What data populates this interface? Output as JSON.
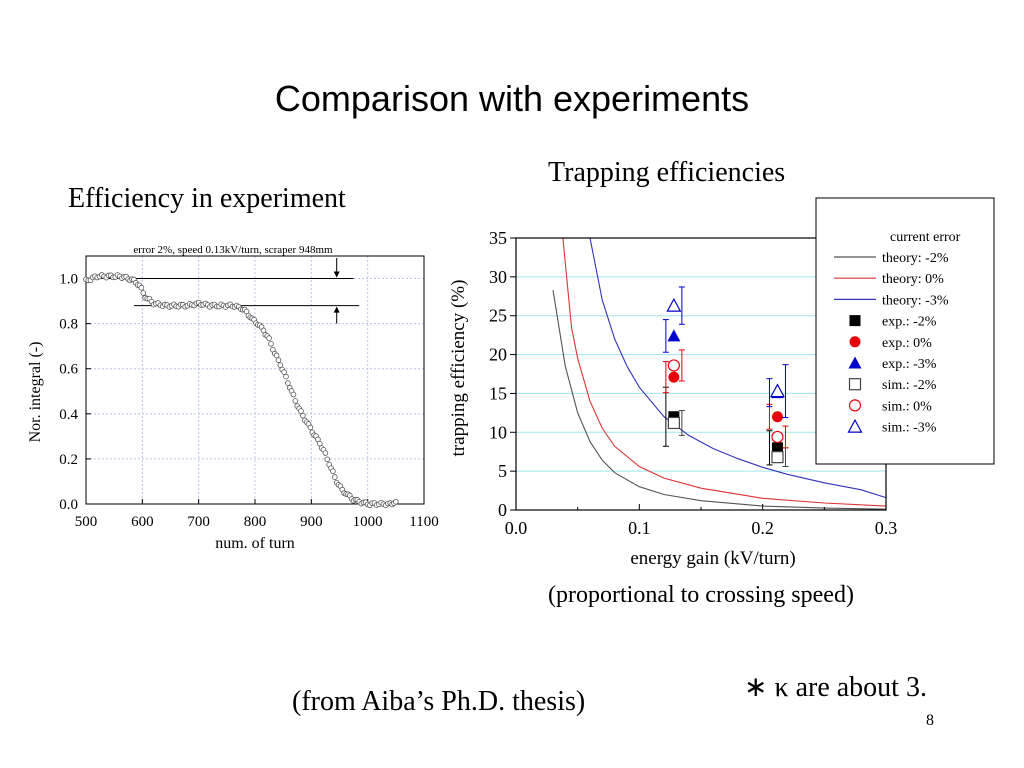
{
  "slide": {
    "title": "Comparison with experiments",
    "left_caption": "Efficiency in experiment",
    "right_caption": "Trapping efficiencies",
    "proportional_note": "(proportional to crossing speed)",
    "source_note": "(from Aiba’s Ph.D. thesis)",
    "kappa_note": "∗ κ are about 3.",
    "page_number": "8"
  },
  "chart_data": [
    {
      "type": "scatter",
      "title": "error 2%, speed 0.13kV/turn, scraper 948mm",
      "xlabel": "num. of turn",
      "ylabel": "Nor. integral (-)",
      "xlim": [
        500,
        1100
      ],
      "ylim": [
        0.0,
        1.1
      ],
      "xticks": [
        "500",
        "600",
        "700",
        "800",
        "900",
        "1000",
        "1100"
      ],
      "yticks": [
        "0.0",
        "0.2",
        "0.4",
        "0.6",
        "0.8",
        "1.0"
      ],
      "grid": true,
      "reference_levels": [
        1.0,
        0.88
      ],
      "x": [
        500,
        520,
        540,
        560,
        575,
        585,
        595,
        605,
        620,
        640,
        660,
        680,
        700,
        720,
        740,
        760,
        775,
        785,
        795,
        805,
        815,
        825,
        835,
        845,
        855,
        865,
        875,
        885,
        895,
        905,
        915,
        925,
        935,
        945,
        955,
        965,
        975,
        985,
        1000,
        1020,
        1040,
        1050
      ],
      "y": [
        0.99,
        1.01,
        1.01,
        1.01,
        1.0,
        0.99,
        0.97,
        0.92,
        0.89,
        0.88,
        0.88,
        0.88,
        0.89,
        0.88,
        0.88,
        0.88,
        0.87,
        0.85,
        0.82,
        0.8,
        0.77,
        0.73,
        0.67,
        0.62,
        0.56,
        0.5,
        0.44,
        0.39,
        0.35,
        0.31,
        0.27,
        0.22,
        0.16,
        0.1,
        0.06,
        0.04,
        0.02,
        0.01,
        0.0,
        0.0,
        0.0,
        0.01
      ]
    },
    {
      "type": "line",
      "xlabel": "energy gain (kV/turn)",
      "ylabel": "trapping efficiency (%)",
      "xlim": [
        0.0,
        0.3
      ],
      "ylim": [
        0,
        35
      ],
      "xticks": [
        "0.0",
        "0.1",
        "0.2",
        "0.3"
      ],
      "yticks": [
        "0",
        "5",
        "10",
        "15",
        "20",
        "25",
        "30",
        "35"
      ],
      "grid": "horizontal",
      "legend_title": "current error",
      "legend_position": "top-right",
      "series": [
        {
          "name": "theory: -2%",
          "kind": "line",
          "color": "#555555",
          "x": [
            0.03,
            0.04,
            0.05,
            0.06,
            0.07,
            0.08,
            0.1,
            0.12,
            0.15,
            0.2,
            0.25,
            0.3
          ],
          "y": [
            28.3,
            18.5,
            12.5,
            8.8,
            6.4,
            4.8,
            3.0,
            2.0,
            1.2,
            0.5,
            0.25,
            0.1
          ]
        },
        {
          "name": "theory: 0%",
          "kind": "line",
          "color": "#dd3333",
          "x": [
            0.038,
            0.045,
            0.05,
            0.06,
            0.07,
            0.08,
            0.1,
            0.12,
            0.15,
            0.2,
            0.25,
            0.3
          ],
          "y": [
            35.0,
            23.5,
            19.5,
            14.0,
            10.5,
            8.2,
            5.6,
            4.1,
            2.8,
            1.5,
            0.9,
            0.5
          ]
        },
        {
          "name": "theory: -3%",
          "kind": "line",
          "color": "#3333bb",
          "x": [
            0.06,
            0.07,
            0.08,
            0.09,
            0.1,
            0.12,
            0.14,
            0.16,
            0.18,
            0.2,
            0.22,
            0.25,
            0.28,
            0.3
          ],
          "y": [
            35.0,
            27.0,
            22.0,
            18.5,
            15.8,
            12.0,
            9.6,
            7.9,
            6.6,
            5.5,
            4.6,
            3.5,
            2.6,
            1.6
          ]
        },
        {
          "name": "exp.: -2%",
          "kind": "marker",
          "marker": "square-filled",
          "color": "#000000",
          "x": [
            0.128,
            0.212
          ],
          "y": [
            12.0,
            8.0
          ]
        },
        {
          "name": "exp.: 0%",
          "kind": "marker",
          "marker": "circle-filled",
          "color": "#e8000b",
          "x": [
            0.128,
            0.212
          ],
          "y": [
            17.1,
            12.0
          ]
        },
        {
          "name": "exp.: -3%",
          "kind": "marker",
          "marker": "triangle-filled",
          "color": "#0000cc",
          "x": [
            0.128,
            0.212
          ],
          "y": [
            22.4,
            15.1
          ]
        },
        {
          "name": "sim.: -2%",
          "kind": "marker",
          "marker": "square-open",
          "color": "#444444",
          "x": [
            0.128,
            0.212
          ],
          "y": [
            11.2,
            6.8
          ]
        },
        {
          "name": "sim.: 0%",
          "kind": "marker",
          "marker": "circle-open",
          "color": "#e8000b",
          "x": [
            0.128,
            0.212
          ],
          "y": [
            18.6,
            9.4
          ]
        },
        {
          "name": "sim.: -3%",
          "kind": "marker",
          "marker": "triangle-open",
          "color": "#0000cc",
          "x": [
            0.128,
            0.212
          ],
          "y": [
            26.3,
            15.3
          ]
        }
      ]
    }
  ]
}
